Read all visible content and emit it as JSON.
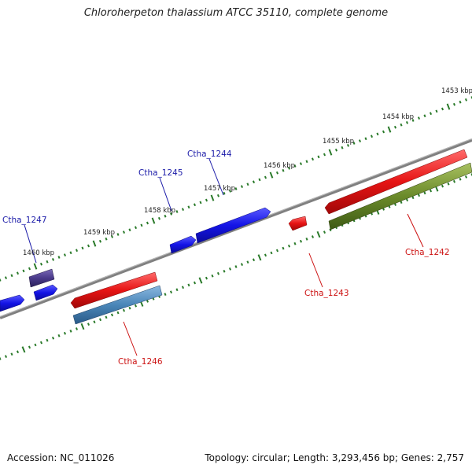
{
  "title": "Chloroherpeton thalassium ATCC 35110, complete genome",
  "footer": {
    "accession": "Accession: NC_011026",
    "summary": "Topology: circular; Length: 3,293,456 bp; Genes: 2,757"
  },
  "colors": {
    "backbone": "#7a7a7a",
    "tick": "#2a7a2a",
    "plus_label": "#1a1aa8",
    "minus_label": "#cc1111",
    "gene_blue": "#1414e6",
    "gene_red": "#e61414",
    "gene_purple": "#4a3a8a",
    "gene_steel": "#4a86b8",
    "gene_olive": "#6a8a2a"
  },
  "scale_labels": [
    "1453 kbp",
    "1454 kbp",
    "1455 kbp",
    "1456 kbp",
    "1457 kbp",
    "1458 kbp",
    "1459 kbp",
    "1460 kbp"
  ],
  "gene_labels": {
    "ctha_1244": "Ctha_1244",
    "ctha_1245": "Ctha_1245",
    "ctha_1247": "Ctha_1247",
    "ctha_1242": "Ctha_1242",
    "ctha_1243": "Ctha_1243",
    "ctha_1246": "Ctha_1246"
  }
}
